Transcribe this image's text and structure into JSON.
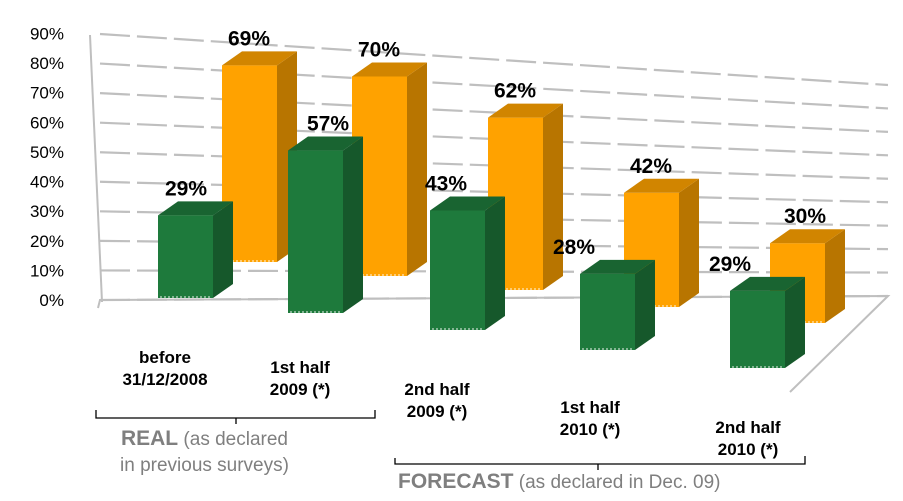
{
  "chart_data": {
    "type": "bar",
    "title": "",
    "xlabel": "",
    "ylabel": "",
    "ylim": [
      0,
      90
    ],
    "y_ticks": [
      "0%",
      "10%",
      "20%",
      "30%",
      "40%",
      "50%",
      "60%",
      "70%",
      "80%",
      "90%"
    ],
    "grid": true,
    "legend": "none",
    "categories": [
      [
        "before",
        "31/12/2008"
      ],
      [
        "1st half",
        "2009 (*)"
      ],
      [
        "2nd half",
        "2009 (*)"
      ],
      [
        "1st half",
        "2010 (*)"
      ],
      [
        "2nd half",
        "2010 (*)"
      ]
    ],
    "series": [
      {
        "color": "#1e7a3c",
        "values": [
          29,
          57,
          43,
          28,
          29
        ],
        "labels": [
          "29%",
          "57%",
          "43%",
          "28%",
          "29%"
        ]
      },
      {
        "color": "#ffa200",
        "values": [
          69,
          70,
          62,
          42,
          30
        ],
        "labels": [
          "69%",
          "70%",
          "62%",
          "42%",
          "30%"
        ]
      }
    ],
    "groups": [
      {
        "bold": "REAL",
        "rest": " (as declared",
        "line2": "in previous surveys)"
      },
      {
        "bold": "FORECAST",
        "rest": " (as declared in Dec. 09)"
      }
    ]
  }
}
